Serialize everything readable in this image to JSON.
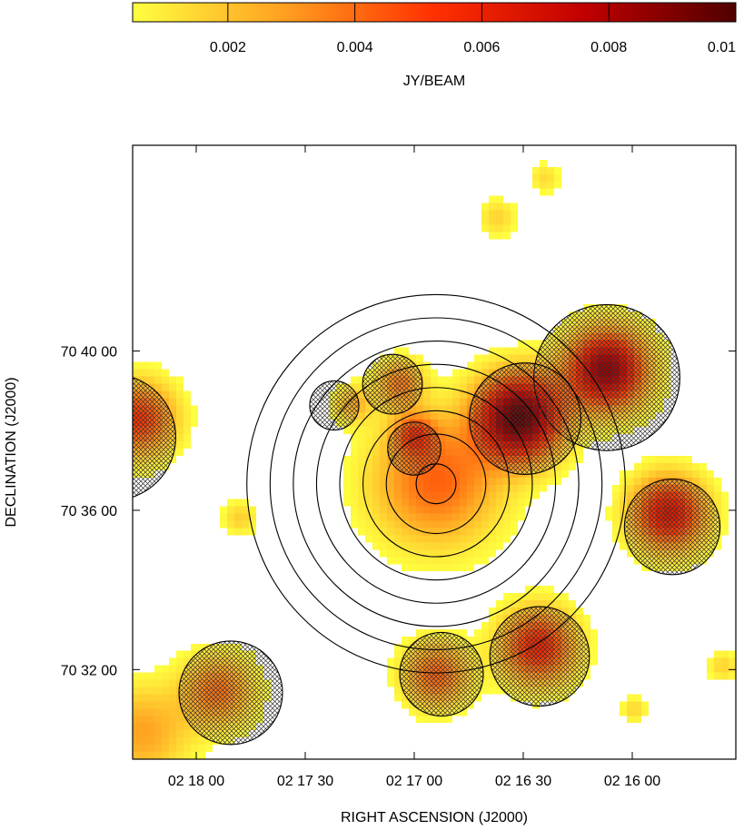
{
  "chart_data": {
    "type": "heatmap",
    "title": "",
    "xlabel": "RIGHT ASCENSION  (J2000)",
    "ylabel": "DECLINATION  (J2000)",
    "x_unit": "seconds of RA, relative to 02 16 00",
    "y_unit": "arcseconds of Dec, relative to 70 36 00",
    "xlim": [
      137.5,
      -28.5
    ],
    "ylim": [
      -375,
      550
    ],
    "x_ticks": [
      {
        "value": 120,
        "label": "02 18 00"
      },
      {
        "value": 90,
        "label": "02 17 30"
      },
      {
        "value": 60,
        "label": "02 17 00"
      },
      {
        "value": 30,
        "label": "02 16 30"
      },
      {
        "value": 0,
        "label": "02 16 00"
      }
    ],
    "y_ticks": [
      {
        "value": 240,
        "label": "70 40 00"
      },
      {
        "value": 0,
        "label": "70 36 00"
      },
      {
        "value": -240,
        "label": "70 32 00"
      }
    ],
    "colorbar": {
      "label": "JY/BEAM",
      "range": [
        0.0005,
        0.01
      ],
      "ticks": [
        0.002,
        0.004,
        0.006,
        0.008,
        0.01
      ],
      "tick_labels": [
        "0.002",
        "0.004",
        "0.006",
        "0.008",
        "0.01"
      ],
      "colors": [
        "#ffff40",
        "#ffa020",
        "#ff3000",
        "#c00000",
        "#500000"
      ]
    },
    "sources": [
      {
        "ra": 54.0,
        "dec": 40.0,
        "peak": 0.0042,
        "sigma": 68
      },
      {
        "ra": 31.0,
        "dec": 138.0,
        "peak": 0.0096,
        "sigma": 45
      },
      {
        "ra": 7.0,
        "dec": 210.0,
        "peak": 0.0085,
        "sigma": 42
      },
      {
        "ra": -10.0,
        "dec": -8.0,
        "peak": 0.0065,
        "sigma": 40
      },
      {
        "ra": 26.0,
        "dec": -210.0,
        "peak": 0.0058,
        "sigma": 40
      },
      {
        "ra": 54.0,
        "dec": -253.0,
        "peak": 0.0042,
        "sigma": 35
      },
      {
        "ra": 114.0,
        "dec": -277.0,
        "peak": 0.0038,
        "sigma": 38
      },
      {
        "ra": 136.0,
        "dec": 135.0,
        "peak": 0.0052,
        "sigma": 40
      },
      {
        "ra": 135.0,
        "dec": -340.0,
        "peak": 0.0028,
        "sigma": 50
      },
      {
        "ra": 64.0,
        "dec": 190.0,
        "peak": 0.0034,
        "sigma": 25
      },
      {
        "ra": 60.0,
        "dec": 112.0,
        "peak": 0.0034,
        "sigma": 23
      },
      {
        "ra": 77.0,
        "dec": 158.0,
        "peak": 0.0024,
        "sigma": 20
      },
      {
        "ra": 108.0,
        "dec": -15.0,
        "peak": 0.0017,
        "sigma": 18
      },
      {
        "ra": 37.0,
        "dec": 440.0,
        "peak": 0.0016,
        "sigma": 20
      },
      {
        "ra": 24.0,
        "dec": 500.0,
        "peak": 0.0014,
        "sigma": 16
      },
      {
        "ra": -0.5,
        "dec": -305.0,
        "peak": 0.0015,
        "sigma": 14
      },
      {
        "ra": -25.0,
        "dec": -240.0,
        "peak": 0.0016,
        "sigma": 16
      }
    ],
    "concentric_circles": {
      "ra": 54.0,
      "dec": 40.0,
      "radii": [
        30,
        75,
        110,
        145,
        180,
        215,
        250,
        285
      ]
    },
    "masked_circles": [
      {
        "ra": 7.0,
        "dec": 200.0,
        "radius": 110
      },
      {
        "ra": 29.5,
        "dec": 138.0,
        "radius": 84
      },
      {
        "ra": 66.0,
        "dec": 190.0,
        "radius": 45
      },
      {
        "ra": 82.0,
        "dec": 158.0,
        "radius": 37
      },
      {
        "ra": 60.0,
        "dec": 93.0,
        "radius": 40
      },
      {
        "ra": -11.0,
        "dec": -25.0,
        "radius": 72
      },
      {
        "ra": 25.5,
        "dec": -220.0,
        "radius": 75
      },
      {
        "ra": 52.5,
        "dec": -247.0,
        "radius": 63
      },
      {
        "ra": 110.5,
        "dec": -275.0,
        "radius": 78
      },
      {
        "ra": 143.0,
        "dec": 110.0,
        "radius": 95
      }
    ]
  }
}
